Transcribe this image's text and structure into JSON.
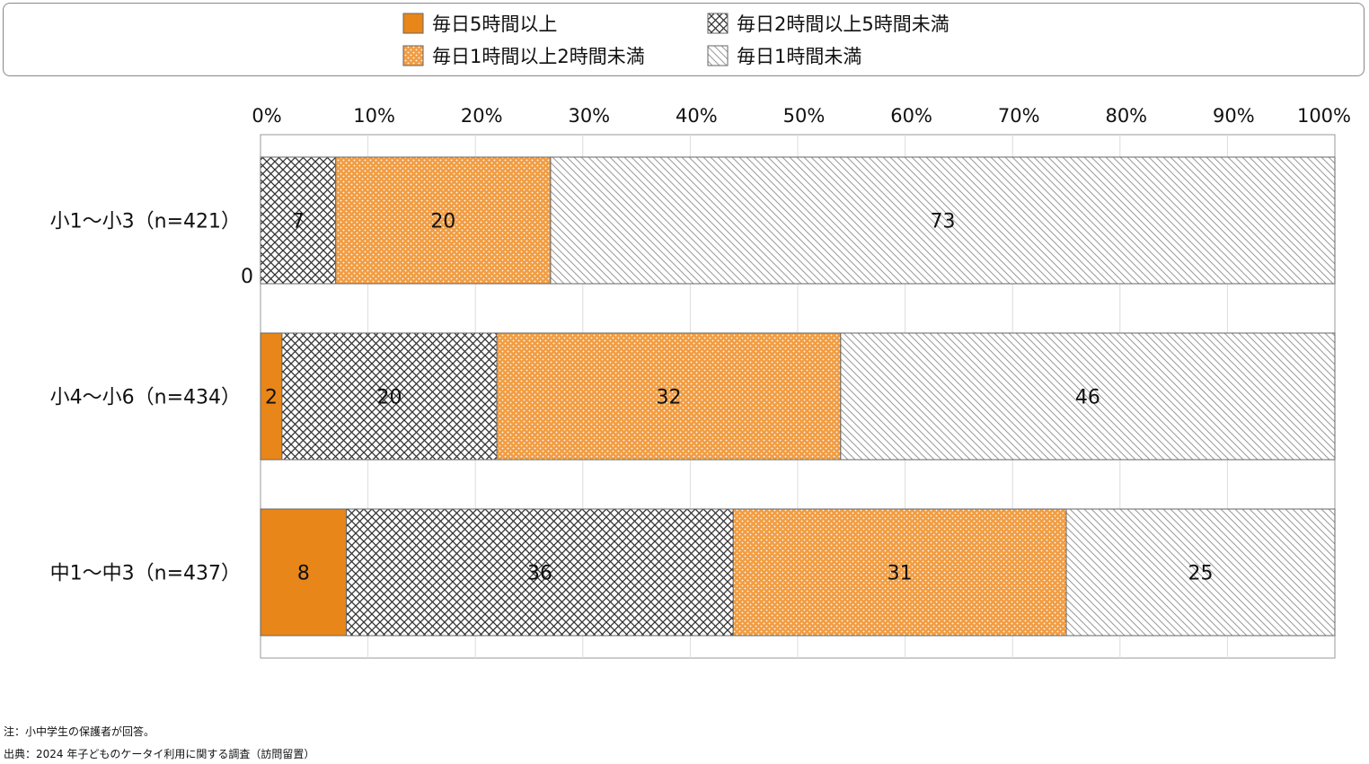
{
  "chart_data": {
    "type": "bar",
    "orientation": "horizontal",
    "stacked": true,
    "categories": [
      "小1～小3（n=421）",
      "小4～小6（n=434）",
      "中1～中3（n=437）"
    ],
    "series": [
      {
        "name": "毎日5時間以上",
        "values": [
          0,
          2,
          8
        ],
        "color": "#e8861a",
        "pattern": "solid"
      },
      {
        "name": "毎日2時間以上5時間未満",
        "values": [
          7,
          20,
          36
        ],
        "color": "#555555",
        "pattern": "crosshatch"
      },
      {
        "name": "毎日1時間以上2時間未満",
        "values": [
          20,
          32,
          31
        ],
        "color": "#f19d43",
        "pattern": "dots"
      },
      {
        "name": "毎日1時間未満",
        "values": [
          73,
          46,
          25
        ],
        "color": "#e9e9e9",
        "pattern": "diagonal"
      }
    ],
    "xlim": [
      0,
      100
    ],
    "xticks": [
      "0%",
      "10%",
      "20%",
      "30%",
      "40%",
      "50%",
      "60%",
      "70%",
      "80%",
      "90%",
      "100%"
    ],
    "legend_position": "top",
    "grid": true,
    "stray_zero_label": "0"
  },
  "notes": {
    "note": "注：小中学生の保護者が回答。",
    "source": "出典：2024 年子どものケータイ利用に関する調査（訪問留置）"
  }
}
